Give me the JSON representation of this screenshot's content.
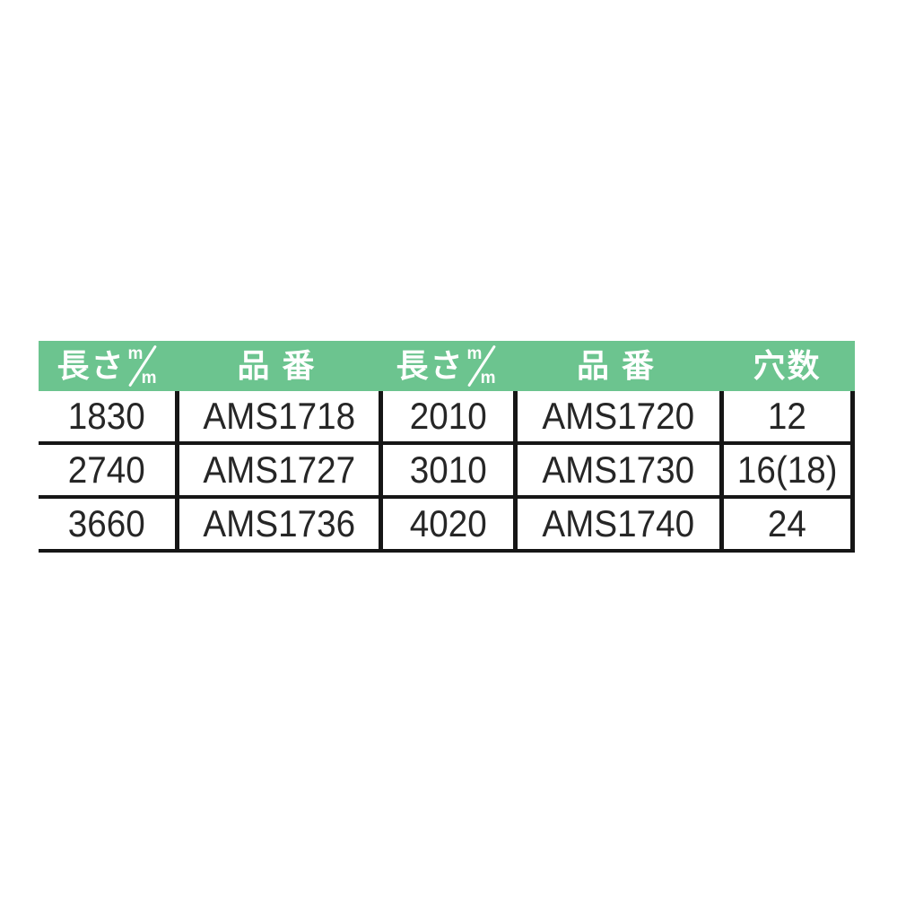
{
  "table": {
    "header_bg": "#6cc48f",
    "header_text_color": "#ffffff",
    "line_color": "#161616",
    "body_text_color": "#262626",
    "columns": [
      {
        "label": "長さ",
        "unit": "m/m"
      },
      {
        "label": "品 番"
      },
      {
        "label": "長さ",
        "unit": "m/m"
      },
      {
        "label": "品 番"
      },
      {
        "label": "穴数"
      }
    ],
    "unit_parts": {
      "top": "m",
      "bottom": "m"
    },
    "rows": [
      [
        "1830",
        "AMS1718",
        "2010",
        "AMS1720",
        "12"
      ],
      [
        "2740",
        "AMS1727",
        "3010",
        "AMS1730",
        "16(18)"
      ],
      [
        "3660",
        "AMS1736",
        "4020",
        "AMS1740",
        "24"
      ]
    ]
  }
}
